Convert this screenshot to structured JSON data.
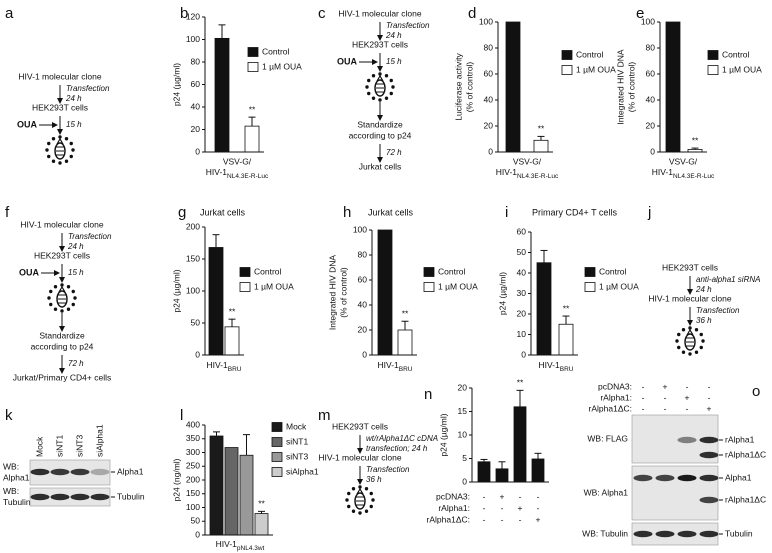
{
  "chart_data": [
    {
      "panel": "b",
      "type": "bar",
      "ylabel": [
        "p24 (µg/ml)"
      ],
      "ylim": [
        0,
        120
      ],
      "yticks": [
        0,
        20,
        40,
        60,
        80,
        100,
        120
      ],
      "xlabel": {
        "prefix": "VSV-G/",
        "main": "HIV-1",
        "sub": "NL4.3E-R-Luc"
      },
      "series": [
        {
          "name": "Control",
          "color": "#111111",
          "values": [
            101
          ],
          "errors": [
            12
          ]
        },
        {
          "name": "1 µM OUA",
          "color": "#ffffff",
          "values": [
            23
          ],
          "errors": [
            8
          ],
          "significance": [
            "**"
          ]
        }
      ]
    },
    {
      "panel": "d",
      "type": "bar",
      "ylabel": [
        "Luciferase activity",
        "(% of control)"
      ],
      "ylim": [
        0,
        100
      ],
      "yticks": [
        0,
        20,
        40,
        60,
        80,
        100
      ],
      "xlabel": {
        "prefix": "VSV-G/",
        "main": "HIV-1",
        "sub": "NL4.3E-R-Luc"
      },
      "series": [
        {
          "name": "Control",
          "color": "#111111",
          "values": [
            100
          ]
        },
        {
          "name": "1 µM OUA",
          "color": "#ffffff",
          "values": [
            9
          ],
          "errors": [
            3
          ],
          "significance": [
            "**"
          ]
        }
      ]
    },
    {
      "panel": "e",
      "type": "bar",
      "ylabel": [
        "Integrated HIV DNA",
        "(% of control)"
      ],
      "ylim": [
        0,
        100
      ],
      "yticks": [
        0,
        20,
        40,
        60,
        80,
        100
      ],
      "xlabel": {
        "prefix": "VSV-G/",
        "main": "HIV-1",
        "sub": "NL4.3E-R-Luc"
      },
      "series": [
        {
          "name": "Control",
          "color": "#111111",
          "values": [
            100
          ]
        },
        {
          "name": "1 µM OUA",
          "color": "#ffffff",
          "values": [
            2
          ],
          "errors": [
            1
          ],
          "significance": [
            "**"
          ]
        }
      ]
    },
    {
      "panel": "g",
      "type": "bar",
      "title": "Jurkat cells",
      "ylabel": [
        "p24 (µg/ml)"
      ],
      "ylim": [
        0,
        200
      ],
      "yticks": [
        0,
        50,
        100,
        150,
        200
      ],
      "xlabel": {
        "main": "HIV-1",
        "sub": "BRU"
      },
      "series": [
        {
          "name": "Control",
          "color": "#111111",
          "values": [
            168
          ],
          "errors": [
            20
          ]
        },
        {
          "name": "1 µM OUA",
          "color": "#ffffff",
          "values": [
            44
          ],
          "errors": [
            12
          ],
          "significance": [
            "**"
          ]
        }
      ]
    },
    {
      "panel": "h",
      "type": "bar",
      "title": "Jurkat cells",
      "ylabel": [
        "Integrated HIV DNA",
        "(% of control)"
      ],
      "ylim": [
        0,
        100
      ],
      "yticks": [
        0,
        20,
        40,
        60,
        80,
        100
      ],
      "xlabel": {
        "main": "HIV-1",
        "sub": "BRU"
      },
      "series": [
        {
          "name": "Control",
          "color": "#111111",
          "values": [
            100
          ]
        },
        {
          "name": "1 µM OUA",
          "color": "#ffffff",
          "values": [
            20
          ],
          "errors": [
            7
          ],
          "significance": [
            "**"
          ]
        }
      ]
    },
    {
      "panel": "i",
      "type": "bar",
      "title": "Primary CD4+ T cells",
      "ylabel": [
        "p24 (µg/ml)"
      ],
      "ylim": [
        0,
        60
      ],
      "yticks": [
        0,
        10,
        20,
        30,
        40,
        50,
        60
      ],
      "xlabel": {
        "main": "HIV-1",
        "sub": "BRU"
      },
      "series": [
        {
          "name": "Control",
          "color": "#111111",
          "values": [
            45
          ],
          "errors": [
            6
          ]
        },
        {
          "name": "1 µM OUA",
          "color": "#ffffff",
          "values": [
            15
          ],
          "errors": [
            4
          ],
          "significance": [
            "**"
          ]
        }
      ]
    },
    {
      "panel": "l",
      "type": "bar",
      "ylabel": [
        "p24 (ng/ml)"
      ],
      "ylim": [
        0,
        400
      ],
      "yticks": [
        0,
        50,
        100,
        150,
        200,
        250,
        300,
        350,
        400
      ],
      "xlabel": {
        "main": "HIV-1",
        "sub": "pNL4.3wt"
      },
      "series": [
        {
          "name": "Mock",
          "color": "#1a1a1a",
          "values": [
            360
          ],
          "errors": [
            15
          ]
        },
        {
          "name": "siNT1",
          "color": "#666666",
          "values": [
            318
          ]
        },
        {
          "name": "siNT3",
          "color": "#999999",
          "values": [
            290
          ],
          "errors": [
            75
          ]
        },
        {
          "name": "siAlpha1",
          "color": "#cccccc",
          "values": [
            78
          ],
          "errors": [
            8
          ],
          "significance": [
            "**"
          ]
        }
      ]
    },
    {
      "panel": "n",
      "type": "bar",
      "ylabel": [
        "p24 (µg/ml)"
      ],
      "ylim": [
        0,
        20
      ],
      "yticks": [
        0,
        5,
        10,
        15,
        20
      ],
      "series": [
        {
          "color": "#111111",
          "values": [
            4.3,
            2.8,
            16,
            4.9
          ],
          "errors": [
            0.5,
            1.5,
            3.5,
            1.2
          ],
          "significance": [
            null,
            null,
            "**",
            null
          ]
        }
      ],
      "conditions": [
        {
          "name": "pcDNA3:",
          "signs": [
            "-",
            "+",
            "-",
            "-"
          ]
        },
        {
          "name": "rAlpha1:",
          "signs": [
            "-",
            "-",
            "+",
            "-"
          ]
        },
        {
          "name": "rAlpha1ΔC:",
          "signs": [
            "-",
            "-",
            "-",
            "+"
          ]
        }
      ]
    }
  ],
  "diagrams": [
    {
      "panel": "a",
      "steps": [
        {
          "text": [
            "HIV-1 molecular clone"
          ]
        },
        {
          "arrow": [
            "Transfection",
            "24 h"
          ]
        },
        {
          "text": [
            "HEK293T cells"
          ]
        },
        {
          "arrow": [
            "15 h"
          ],
          "input": "OUA"
        },
        {
          "icon": "cell"
        }
      ]
    },
    {
      "panel": "c",
      "steps": [
        {
          "text": [
            "HIV-1 molecular clone"
          ]
        },
        {
          "arrow": [
            "Transfection",
            "24 h"
          ]
        },
        {
          "text": [
            "HEK293T cells"
          ]
        },
        {
          "arrow": [
            "15 h"
          ],
          "input": "OUA"
        },
        {
          "icon": "cell"
        },
        {
          "arrow": []
        },
        {
          "text": [
            "Standardize",
            "according to p24"
          ]
        },
        {
          "arrow": [
            "72 h"
          ]
        },
        {
          "text": [
            "Jurkat cells"
          ]
        }
      ]
    },
    {
      "panel": "f",
      "steps": [
        {
          "text": [
            "HIV-1 molecular clone"
          ]
        },
        {
          "arrow": [
            "Transfection",
            "24 h"
          ]
        },
        {
          "text": [
            "HEK293T cells"
          ]
        },
        {
          "arrow": [
            "15 h"
          ],
          "input": "OUA"
        },
        {
          "icon": "cell"
        },
        {
          "arrow": []
        },
        {
          "text": [
            "Standardize",
            "according to p24"
          ]
        },
        {
          "arrow": [
            "72 h"
          ]
        },
        {
          "text": [
            "Jurkat/Primary CD4+ cells"
          ]
        }
      ]
    },
    {
      "panel": "j",
      "steps": [
        {
          "text": [
            "HEK293T cells"
          ]
        },
        {
          "arrow": [
            "anti-alpha1 siRNA",
            "24 h"
          ]
        },
        {
          "text": [
            "HIV-1 molecular clone"
          ]
        },
        {
          "arrow": [
            "Transfection",
            "36 h"
          ]
        },
        {
          "icon": "cell"
        }
      ]
    },
    {
      "panel": "m",
      "steps": [
        {
          "text": [
            "HEK293T cells"
          ]
        },
        {
          "arrow": [
            "wt/rAlpha1ΔC cDNA",
            "transfection; 24 h"
          ]
        },
        {
          "text": [
            "HIV-1 molecular clone"
          ]
        },
        {
          "arrow": [
            "Transfection",
            "36 h"
          ]
        },
        {
          "icon": "cell"
        }
      ]
    }
  ],
  "blots": [
    {
      "panel": "k",
      "lanes": [
        "Mock",
        "siNT1",
        "siNT3",
        "siAlpha1"
      ],
      "rows": [
        {
          "label": [
            "WB:",
            "Alpha1"
          ],
          "markers": [
            "Alpha1"
          ]
        },
        {
          "label": [
            "WB:",
            "Tubulin"
          ],
          "markers": [
            "Tubulin"
          ]
        }
      ]
    },
    {
      "panel": "o",
      "conditions": [
        {
          "name": "pcDNA3:",
          "signs": [
            "-",
            "+",
            "-",
            "-"
          ]
        },
        {
          "name": "rAlpha1:",
          "signs": [
            "-",
            "-",
            "+",
            "-"
          ]
        },
        {
          "name": "rAlpha1ΔC:",
          "signs": [
            "-",
            "-",
            "-",
            "+"
          ]
        }
      ],
      "rows": [
        {
          "label": [
            "WB: FLAG"
          ],
          "markers": [
            "rAlpha1",
            "rAlpha1ΔC"
          ]
        },
        {
          "label": [
            "WB: Alpha1"
          ],
          "markers": [
            "Alpha1",
            "rAlpha1ΔC"
          ]
        },
        {
          "label": [
            "WB: Tubulin"
          ],
          "markers": [
            "Tubulin"
          ]
        }
      ]
    }
  ]
}
